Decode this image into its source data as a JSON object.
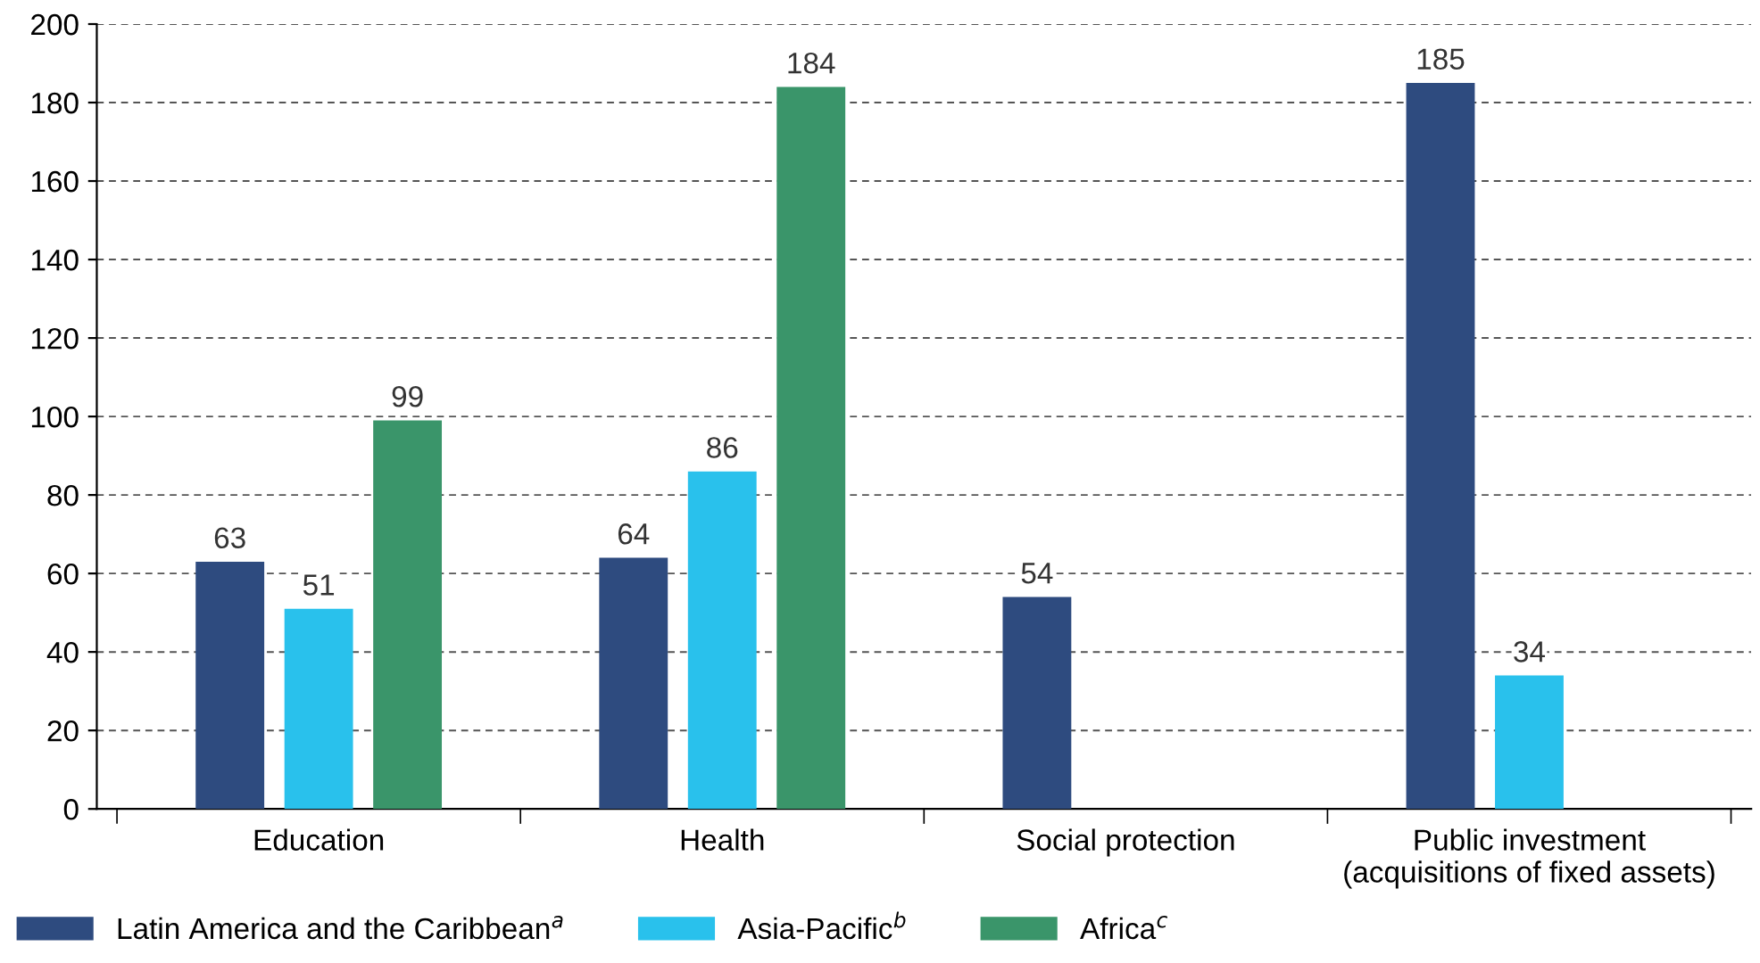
{
  "chart_data": {
    "type": "bar",
    "categories": [
      "Education",
      "Health",
      "Social protection",
      "Public investment\n(acquisitions of fixed assets)"
    ],
    "series": [
      {
        "name": "Latin America and the Caribbean$^{a}$",
        "color": "#2e4b7f",
        "values": [
          63,
          64,
          54,
          185
        ]
      },
      {
        "name": "Asia-Pacific$^{b}$",
        "color": "#29c1ec",
        "values": [
          51,
          86,
          null,
          34
        ]
      },
      {
        "name": "Africa$^{c}$",
        "color": "#3a956a",
        "values": [
          99,
          184,
          null,
          null
        ]
      }
    ],
    "ylim": [
      0,
      200
    ],
    "yticks": [
      0,
      20,
      40,
      60,
      80,
      100,
      120,
      140,
      160,
      180,
      200
    ],
    "grid": "y",
    "legend": "bottom left",
    "data_labels": true
  }
}
